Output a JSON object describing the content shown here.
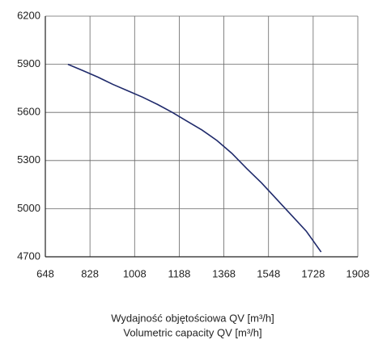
{
  "chart_data": {
    "type": "line",
    "x": [
      739,
      800,
      860,
      920,
      980,
      1040,
      1100,
      1160,
      1220,
      1280,
      1340,
      1400,
      1460,
      1520,
      1580,
      1640,
      1700,
      1760
    ],
    "series": [
      {
        "color": "#1f2a6b",
        "values": [
          5900,
          5860,
          5820,
          5775,
          5735,
          5695,
          5650,
          5600,
          5545,
          5490,
          5425,
          5345,
          5250,
          5160,
          5060,
          4960,
          4860,
          4730
        ]
      }
    ],
    "xlim": [
      648,
      1908
    ],
    "xticks": [
      648,
      828,
      1008,
      1188,
      1368,
      1548,
      1728,
      1908
    ],
    "ylim": [
      4700,
      6200
    ],
    "yticks": [
      4700,
      5000,
      5300,
      5600,
      5900,
      6200
    ],
    "grid": true,
    "x_label": [
      "Wydajność objętościowa QV [m³/h]",
      "Volumetric capacity QV [m³/h]"
    ]
  }
}
